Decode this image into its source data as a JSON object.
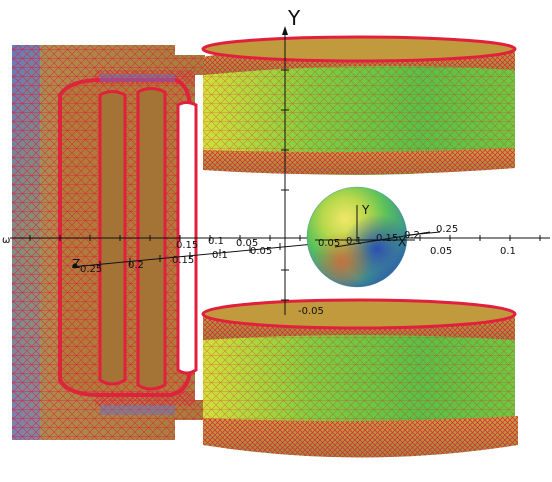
{
  "viewer": {
    "axes": {
      "main_y_title": "Y",
      "main_z_title": "Z",
      "sphere_y_title": "Y",
      "sphere_x_title": "X",
      "left_edge_label": "ω",
      "ticks_left": [
        "0.25",
        "0.2",
        "0.15",
        "0.1",
        "0.05"
      ],
      "ticks_right": [
        "0.05",
        "0.1"
      ],
      "ticks_upper": [
        "0.15",
        "0.1",
        "0.05"
      ],
      "ticks_sphere": [
        "0.05",
        "0.1",
        "0.15",
        "0.2",
        "0.25"
      ],
      "tick_below_center": "-0.05"
    },
    "colors": {
      "mesh_edge": "#e0203c",
      "field_low": "#3a62c8",
      "field_mid": "#2fbf46",
      "field_high": "#e4d52a",
      "background": "#ffffff"
    }
  }
}
